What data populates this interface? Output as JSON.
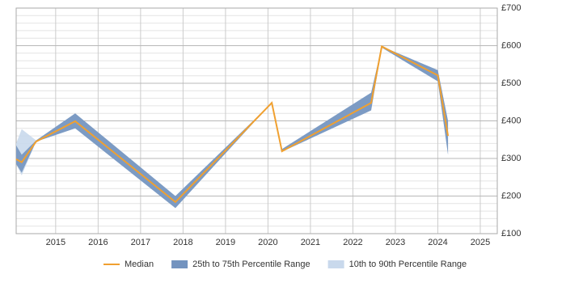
{
  "chart_data": {
    "type": "line",
    "x": [
      2014.07,
      2014.2,
      2014.54,
      2015.46,
      2017.82,
      2020.09,
      2020.33,
      2022.43,
      2022.68,
      2024.0,
      2024.24
    ],
    "series": [
      {
        "name": "Median",
        "color": "#f0a030",
        "values": [
          298,
          290,
          345,
          399,
          184,
          448,
          319,
          448,
          598,
          521,
          360
        ]
      },
      {
        "name": "25th to 75th Percentile Range",
        "color": "#7393bf",
        "band": true,
        "lower": [
          285,
          262,
          345,
          380,
          168,
          448,
          318,
          428,
          595,
          505,
          310
        ],
        "upper": [
          335,
          310,
          348,
          420,
          200,
          448,
          325,
          475,
          598,
          535,
          400
        ]
      },
      {
        "name": "10th to 90th Percentile Range",
        "color": "#c9d9ec",
        "band": true,
        "lower": [
          285,
          255,
          345,
          380,
          168,
          448,
          318,
          428,
          595,
          505,
          310
        ],
        "upper": [
          340,
          378,
          348,
          420,
          200,
          448,
          325,
          475,
          598,
          535,
          400
        ]
      }
    ],
    "xlim": [
      2014.07,
      2025.4
    ],
    "xticks": [
      2015,
      2016,
      2017,
      2018,
      2019,
      2020,
      2021,
      2022,
      2023,
      2024,
      2025
    ],
    "ylim": [
      100,
      700
    ],
    "yticks": [
      {
        "value": 100,
        "label": "£100"
      },
      {
        "value": 200,
        "label": "£200"
      },
      {
        "value": 300,
        "label": "£300"
      },
      {
        "value": 400,
        "label": "£400"
      },
      {
        "value": 500,
        "label": "£500"
      },
      {
        "value": 600,
        "label": "£600"
      },
      {
        "value": 700,
        "label": "£700"
      }
    ],
    "yminorticks": [
      120,
      140,
      160,
      180,
      220,
      240,
      260,
      280,
      320,
      340,
      360,
      380,
      420,
      440,
      460,
      480,
      520,
      540,
      560,
      580,
      620,
      640,
      660,
      680
    ],
    "grid": true
  }
}
